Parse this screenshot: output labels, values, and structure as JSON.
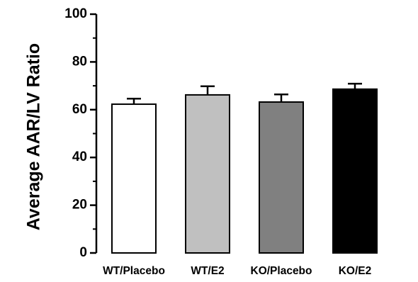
{
  "chart_data": {
    "type": "bar",
    "title": "",
    "xlabel": "",
    "ylabel": "Average AAR/LV Ratio",
    "ylim": [
      0,
      100
    ],
    "yticks": [
      "0",
      "20",
      "40",
      "60",
      "80",
      "100"
    ],
    "categories": [
      "WT/Placebo",
      "WT/E2",
      "KO/Placebo",
      "KO/E2"
    ],
    "values": [
      62.3,
      66.2,
      63.2,
      68.6
    ],
    "errors": [
      2.3,
      3.6,
      3.2,
      2.3
    ],
    "bar_colors": [
      "#ffffff",
      "#c0c0c0",
      "#808080",
      "#000000"
    ],
    "grid": false,
    "legend": "none"
  }
}
